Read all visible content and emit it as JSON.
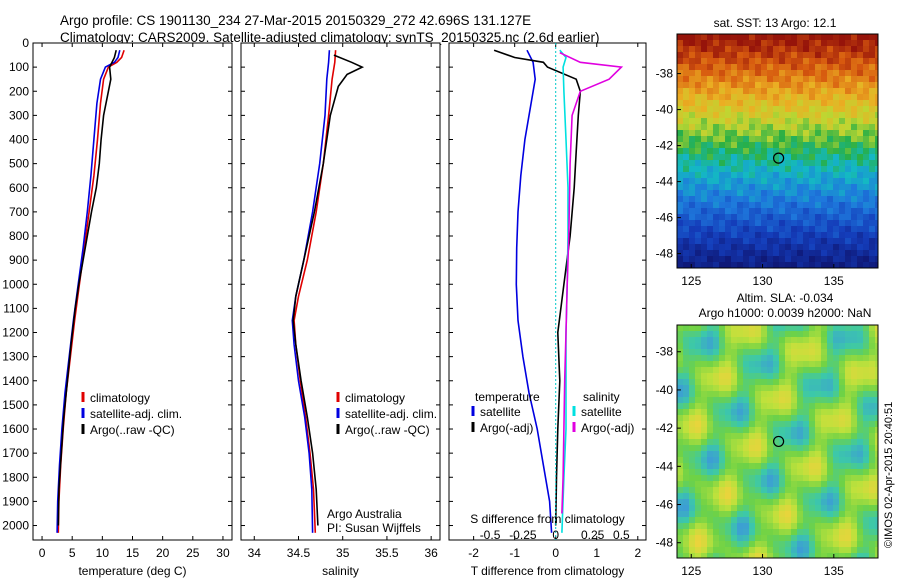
{
  "header": {
    "title_line1": "Argo profile: CS 1901130_234 27-Mar-2015 20150329_272 42.696S 131.127E",
    "title_line2": "Climatology: CARS2009. Satellite-adjusted climatology: synTS_20150325.nc (2.6d earlier)"
  },
  "colors": {
    "climatology": "#e00000",
    "satellite": "#0000e0",
    "argo": "#000000",
    "salinity_satellite": "#00e0e0",
    "salinity_argo": "#e000e0"
  },
  "chart_data": [
    {
      "type": "line",
      "name": "temperature-panel",
      "xlabel": "temperature (deg C)",
      "ylabel": "",
      "xlim": [
        -1.5,
        31.5
      ],
      "ylim": [
        2060,
        0
      ],
      "xticks": [
        0,
        5,
        10,
        15,
        20,
        25,
        30
      ],
      "yticks": [
        0,
        100,
        200,
        300,
        400,
        500,
        600,
        700,
        800,
        900,
        1000,
        1100,
        1200,
        1300,
        1400,
        1500,
        1600,
        1700,
        1800,
        1900,
        2000
      ],
      "legend": [
        "climatology",
        "satellite-adj. clim.",
        "Argo(..raw -QC)"
      ],
      "legend_position": "lower-center",
      "series": [
        {
          "name": "climatology",
          "color": "#e00000",
          "points": [
            [
              13.6,
              30
            ],
            [
              13.2,
              60
            ],
            [
              12.4,
              80
            ],
            [
              11.0,
              100
            ],
            [
              10.2,
              150
            ],
            [
              9.7,
              250
            ],
            [
              9.2,
              400
            ],
            [
              8.6,
              550
            ],
            [
              7.8,
              700
            ],
            [
              7.0,
              850
            ],
            [
              6.2,
              1000
            ],
            [
              5.4,
              1150
            ],
            [
              4.7,
              1300
            ],
            [
              4.0,
              1450
            ],
            [
              3.5,
              1600
            ],
            [
              3.1,
              1750
            ],
            [
              2.8,
              1900
            ],
            [
              2.7,
              2030
            ]
          ]
        },
        {
          "name": "satellite-adj. clim.",
          "color": "#0000e0",
          "points": [
            [
              12.9,
              30
            ],
            [
              12.6,
              60
            ],
            [
              12.0,
              80
            ],
            [
              10.5,
              100
            ],
            [
              9.7,
              150
            ],
            [
              9.1,
              250
            ],
            [
              8.6,
              400
            ],
            [
              8.1,
              550
            ],
            [
              7.5,
              700
            ],
            [
              6.8,
              850
            ],
            [
              6.0,
              1000
            ],
            [
              5.2,
              1150
            ],
            [
              4.5,
              1300
            ],
            [
              3.8,
              1450
            ],
            [
              3.3,
              1600
            ],
            [
              2.9,
              1750
            ],
            [
              2.6,
              1900
            ],
            [
              2.5,
              2030
            ]
          ]
        },
        {
          "name": "Argo(..raw -QC)",
          "color": "#000000",
          "points": [
            [
              12.3,
              30
            ],
            [
              12.0,
              60
            ],
            [
              11.2,
              100
            ],
            [
              11.4,
              150
            ],
            [
              11.0,
              200
            ],
            [
              10.2,
              300
            ],
            [
              9.8,
              400
            ],
            [
              9.5,
              500
            ],
            [
              9.0,
              600
            ],
            [
              8.2,
              700
            ],
            [
              7.5,
              800
            ],
            [
              6.8,
              900
            ],
            [
              6.1,
              1000
            ],
            [
              5.5,
              1100
            ],
            [
              4.8,
              1250
            ],
            [
              4.2,
              1400
            ],
            [
              3.6,
              1550
            ],
            [
              3.2,
              1700
            ],
            [
              2.8,
              1850
            ],
            [
              2.7,
              2000
            ]
          ]
        }
      ]
    },
    {
      "type": "line",
      "name": "salinity-panel",
      "xlabel": "salinity",
      "ylabel": "",
      "xlim": [
        33.85,
        36.1
      ],
      "ylim": [
        2060,
        0
      ],
      "xticks": [
        34,
        34.5,
        35,
        35.5,
        36
      ],
      "xtick_labels": [
        "34",
        "34.5",
        "35",
        "35.5",
        "36"
      ],
      "legend": [
        "climatology",
        "satellite-adj. clim.",
        "Argo(..raw -QC)"
      ],
      "legend_position": "lower-right",
      "annotation": [
        "Argo Australia",
        "PI: Susan Wijffels"
      ],
      "series": [
        {
          "name": "climatology",
          "color": "#e00000",
          "points": [
            [
              34.92,
              30
            ],
            [
              34.91,
              80
            ],
            [
              34.88,
              150
            ],
            [
              34.84,
              300
            ],
            [
              34.78,
              500
            ],
            [
              34.7,
              700
            ],
            [
              34.6,
              900
            ],
            [
              34.5,
              1050
            ],
            [
              34.45,
              1150
            ],
            [
              34.47,
              1250
            ],
            [
              34.52,
              1400
            ],
            [
              34.58,
              1550
            ],
            [
              34.63,
              1700
            ],
            [
              34.67,
              1850
            ],
            [
              34.69,
              2030
            ]
          ]
        },
        {
          "name": "satellite-adj. clim.",
          "color": "#0000e0",
          "points": [
            [
              34.85,
              30
            ],
            [
              34.84,
              80
            ],
            [
              34.82,
              150
            ],
            [
              34.8,
              300
            ],
            [
              34.74,
              500
            ],
            [
              34.66,
              700
            ],
            [
              34.56,
              900
            ],
            [
              34.47,
              1050
            ],
            [
              34.43,
              1150
            ],
            [
              34.45,
              1250
            ],
            [
              34.5,
              1400
            ],
            [
              34.57,
              1550
            ],
            [
              34.62,
              1700
            ],
            [
              34.65,
              1850
            ],
            [
              34.66,
              2030
            ]
          ]
        },
        {
          "name": "Argo(..raw -QC)",
          "color": "#000000",
          "points": [
            [
              34.9,
              50
            ],
            [
              35.1,
              80
            ],
            [
              35.22,
              100
            ],
            [
              35.05,
              130
            ],
            [
              34.95,
              180
            ],
            [
              34.86,
              300
            ],
            [
              34.78,
              500
            ],
            [
              34.68,
              700
            ],
            [
              34.56,
              900
            ],
            [
              34.47,
              1050
            ],
            [
              34.44,
              1150
            ],
            [
              34.47,
              1250
            ],
            [
              34.53,
              1400
            ],
            [
              34.6,
              1550
            ],
            [
              34.66,
              1700
            ],
            [
              34.7,
              1850
            ],
            [
              34.72,
              2000
            ]
          ]
        }
      ]
    },
    {
      "type": "line",
      "name": "difference-panel",
      "xlabel": "T difference from climatology",
      "xlabel_top": "S difference from climatology",
      "xlim": [
        -2.6,
        2.2
      ],
      "ylim": [
        2060,
        0
      ],
      "xticks_bottom": [
        -2,
        -1,
        0,
        1,
        2
      ],
      "xticks_bottom_labels": [
        "-2",
        "-1",
        "0",
        "1",
        "2"
      ],
      "xticks_top_labels": [
        "-0.5",
        "-0.25",
        "0",
        "0.25",
        "0.5"
      ],
      "legend_temperature_title": "temperature",
      "legend_salinity_title": "salinity",
      "legend_temperature": [
        "satellite",
        "Argo(-adj)"
      ],
      "legend_salinity": [
        "satellite",
        "Argo(-adj)"
      ],
      "series": [
        {
          "name": "temperature satellite",
          "color": "#0000e0",
          "points": [
            [
              -0.7,
              30
            ],
            [
              -0.55,
              80
            ],
            [
              -0.5,
              150
            ],
            [
              -0.6,
              250
            ],
            [
              -0.75,
              400
            ],
            [
              -0.85,
              550
            ],
            [
              -0.92,
              700
            ],
            [
              -0.95,
              850
            ],
            [
              -0.96,
              1000
            ],
            [
              -0.92,
              1150
            ],
            [
              -0.8,
              1300
            ],
            [
              -0.65,
              1450
            ],
            [
              -0.45,
              1600
            ],
            [
              -0.3,
              1750
            ],
            [
              -0.15,
              1900
            ],
            [
              -0.1,
              2030
            ]
          ]
        },
        {
          "name": "temperature Argo(-adj)",
          "color": "#000000",
          "points": [
            [
              -1.5,
              30
            ],
            [
              -1.0,
              60
            ],
            [
              -0.3,
              80
            ],
            [
              -0.2,
              100
            ],
            [
              0.5,
              150
            ],
            [
              0.6,
              200
            ],
            [
              0.55,
              300
            ],
            [
              0.5,
              450
            ],
            [
              0.45,
              600
            ],
            [
              0.35,
              800
            ],
            [
              0.2,
              1000
            ],
            [
              0.05,
              1200
            ],
            [
              0.1,
              1400
            ],
            [
              0.05,
              1600
            ],
            [
              0.02,
              1800
            ],
            [
              0.0,
              2000
            ]
          ]
        },
        {
          "name": "salinity satellite",
          "color": "#00e0e0",
          "points": [
            [
              0.1,
              30
            ],
            [
              0.25,
              60
            ],
            [
              0.18,
              100
            ],
            [
              0.2,
              200
            ],
            [
              0.25,
              400
            ],
            [
              0.3,
              600
            ],
            [
              0.3,
              800
            ],
            [
              0.28,
              1000
            ],
            [
              0.25,
              1200
            ],
            [
              0.25,
              1400
            ],
            [
              0.25,
              1600
            ],
            [
              0.2,
              1800
            ],
            [
              0.15,
              2030
            ]
          ]
        },
        {
          "name": "salinity Argo(-adj)",
          "color": "#e000e0",
          "points": [
            [
              0.1,
              40
            ],
            [
              0.6,
              80
            ],
            [
              1.6,
              100
            ],
            [
              1.3,
              150
            ],
            [
              0.6,
              200
            ],
            [
              0.4,
              300
            ],
            [
              0.35,
              500
            ],
            [
              0.32,
              800
            ],
            [
              0.28,
              1000
            ],
            [
              0.25,
              1200
            ],
            [
              0.22,
              1400
            ],
            [
              0.2,
              1600
            ],
            [
              0.18,
              1800
            ],
            [
              0.15,
              1950
            ]
          ]
        }
      ]
    },
    {
      "type": "heatmap",
      "name": "sst-map",
      "title": "sat. SST: 13 Argo: 12.1",
      "xlim": [
        124,
        138.1
      ],
      "ylim": [
        -48.8,
        -35.8
      ],
      "xticks": [
        125,
        130,
        135
      ],
      "yticks": [
        -38,
        -40,
        -42,
        -44,
        -46,
        -48
      ],
      "marker": {
        "lon": 131.127,
        "lat": -42.696
      }
    },
    {
      "type": "heatmap",
      "name": "sla-map",
      "title_line1": "Altim. SLA: -0.034",
      "title_line2": "Argo h1000: 0.0039 h2000: NaN",
      "xlim": [
        124,
        138.1
      ],
      "ylim": [
        -48.8,
        -36.6
      ],
      "xticks": [
        125,
        130,
        135
      ],
      "yticks": [
        -38,
        -40,
        -42,
        -44,
        -46,
        -48
      ],
      "marker": {
        "lon": 131.127,
        "lat": -42.696
      },
      "side_label": "©IMOS 02-Apr-2015 20:40:51"
    }
  ]
}
